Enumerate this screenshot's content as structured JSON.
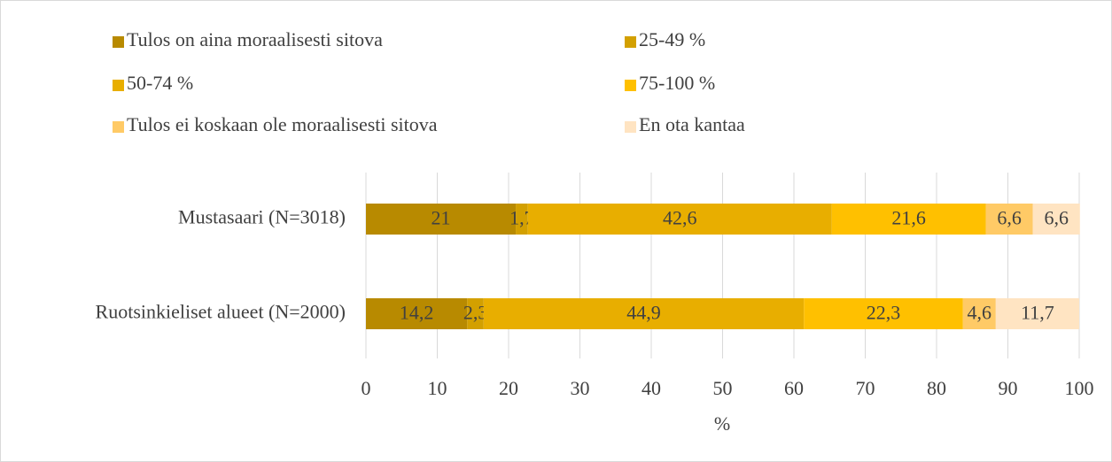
{
  "chart_data": {
    "type": "stacked_bar_horizontal",
    "categories": [
      "Mustasaari (N=3018)",
      "Ruotsinkieliset alueet (N=2000)"
    ],
    "series": [
      {
        "name": "Tulos on aina moraalisesti sitova",
        "color": "#b88a00",
        "values": [
          21,
          14.2
        ],
        "value_labels": [
          "21",
          "14,2"
        ]
      },
      {
        "name": "25-49 %",
        "color": "#d3a000",
        "values": [
          1.7,
          2.3
        ],
        "value_labels": [
          "1,7",
          "2,3"
        ]
      },
      {
        "name": "50-74 %",
        "color": "#e8ae00",
        "values": [
          42.6,
          44.9
        ],
        "value_labels": [
          "42,6",
          "44,9"
        ]
      },
      {
        "name": "75-100 %",
        "color": "#ffc000",
        "values": [
          21.6,
          22.3
        ],
        "value_labels": [
          "21,6",
          "22,3"
        ]
      },
      {
        "name": "Tulos ei koskaan ole moraalisesti sitova",
        "color": "#ffca66",
        "values": [
          6.6,
          4.6
        ],
        "value_labels": [
          "6,6",
          "4,6"
        ]
      },
      {
        "name": "En ota kantaa",
        "color": "#ffe4c2",
        "values": [
          6.6,
          11.7
        ],
        "value_labels": [
          "6,6",
          "11,7"
        ]
      }
    ],
    "xlim": [
      0,
      100
    ],
    "xticks": [
      0,
      10,
      20,
      30,
      40,
      50,
      60,
      70,
      80,
      90,
      100
    ],
    "x_label": "%",
    "grid": true,
    "legend": "top"
  }
}
